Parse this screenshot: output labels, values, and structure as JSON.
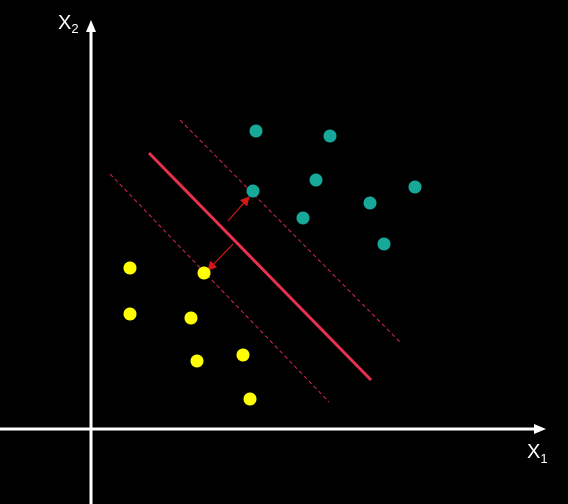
{
  "axes": {
    "y_label": {
      "base": "X",
      "sub": "2"
    },
    "x_label": {
      "base": "X",
      "sub": "1"
    }
  }
}
